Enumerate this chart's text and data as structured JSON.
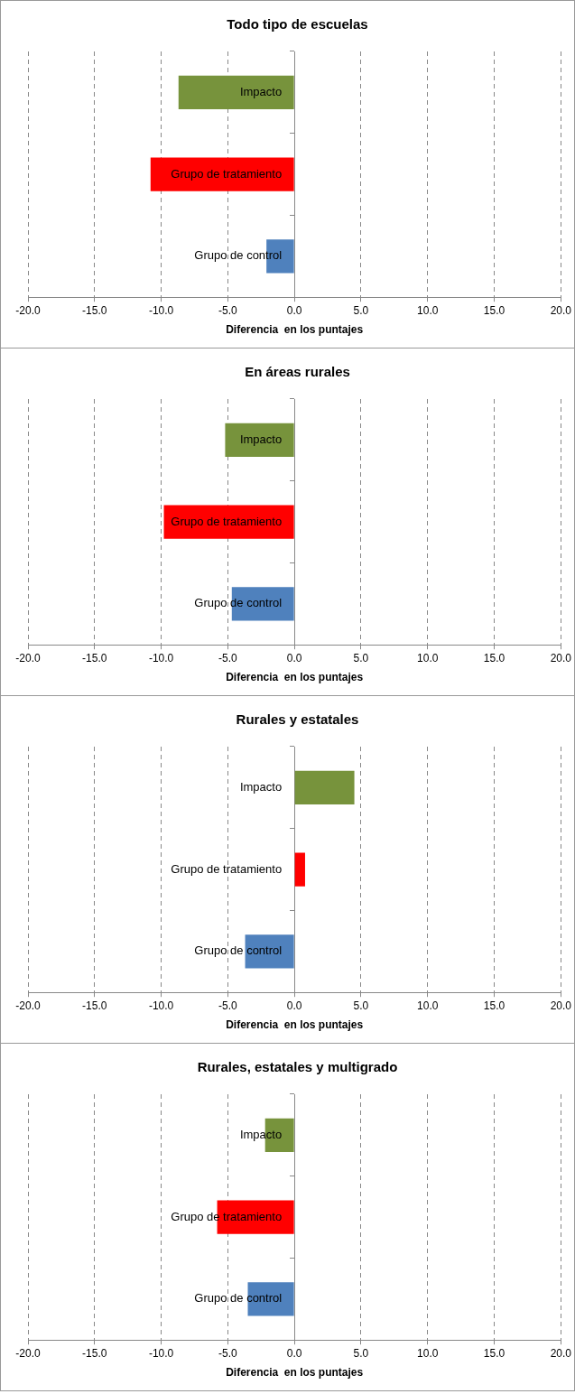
{
  "chart_data": [
    {
      "type": "bar",
      "orientation": "horizontal",
      "title": "Todo tipo de escuelas",
      "xlabel": "Diferencia  en los puntajes",
      "categories": [
        "Impacto",
        "Grupo de tratamiento",
        "Grupo de control"
      ],
      "values": [
        -8.7,
        -10.8,
        -2.1
      ],
      "colors": [
        "#77933c",
        "#ff0000",
        "#4f81bd"
      ],
      "xlim": [
        -20,
        20
      ],
      "xticks": [
        {
          "value": -20,
          "label": "-20.0"
        },
        {
          "value": -15,
          "label": "-15.0"
        },
        {
          "value": -10,
          "label": "-10.0"
        },
        {
          "value": -5,
          "label": "-5.0"
        },
        {
          "value": 0,
          "label": "0.0"
        },
        {
          "value": 5,
          "label": "5.0"
        },
        {
          "value": 10,
          "label": "10.0"
        },
        {
          "value": 15,
          "label": "15.0"
        },
        {
          "value": 20,
          "label": "20.0"
        }
      ],
      "grid": "x"
    },
    {
      "type": "bar",
      "orientation": "horizontal",
      "title": "En áreas rurales",
      "xlabel": "Diferencia  en los puntajes",
      "categories": [
        "Impacto",
        "Grupo de tratamiento",
        "Grupo de control"
      ],
      "values": [
        -5.2,
        -9.8,
        -4.7
      ],
      "colors": [
        "#77933c",
        "#ff0000",
        "#4f81bd"
      ],
      "xlim": [
        -20,
        20
      ],
      "xticks": [
        {
          "value": -20,
          "label": "-20.0"
        },
        {
          "value": -15,
          "label": "-15.0"
        },
        {
          "value": -10,
          "label": "-10.0"
        },
        {
          "value": -5,
          "label": "-5.0"
        },
        {
          "value": 0,
          "label": "0.0"
        },
        {
          "value": 5,
          "label": "5.0"
        },
        {
          "value": 10,
          "label": "10.0"
        },
        {
          "value": 15,
          "label": "15.0"
        },
        {
          "value": 20,
          "label": "20.0"
        }
      ],
      "grid": "x"
    },
    {
      "type": "bar",
      "orientation": "horizontal",
      "title": "Rurales y estatales",
      "xlabel": "Diferencia  en los puntajes",
      "categories": [
        "Impacto",
        "Grupo de tratamiento",
        "Grupo de control"
      ],
      "values": [
        4.5,
        0.8,
        -3.7
      ],
      "colors": [
        "#77933c",
        "#ff0000",
        "#4f81bd"
      ],
      "xlim": [
        -20,
        20
      ],
      "xticks": [
        {
          "value": -20,
          "label": "-20.0"
        },
        {
          "value": -15,
          "label": "-15.0"
        },
        {
          "value": -10,
          "label": "-10.0"
        },
        {
          "value": -5,
          "label": "-5.0"
        },
        {
          "value": 0,
          "label": "0.0"
        },
        {
          "value": 5,
          "label": "5.0"
        },
        {
          "value": 10,
          "label": "10.0"
        },
        {
          "value": 15,
          "label": "15.0"
        },
        {
          "value": 20,
          "label": "20.0"
        }
      ],
      "grid": "x"
    },
    {
      "type": "bar",
      "orientation": "horizontal",
      "title": "Rurales, estatales y multigrado",
      "xlabel": "Diferencia  en los puntajes",
      "categories": [
        "Impacto",
        "Grupo de tratamiento",
        "Grupo de control"
      ],
      "values": [
        -2.2,
        -5.8,
        -3.5
      ],
      "colors": [
        "#77933c",
        "#ff0000",
        "#4f81bd"
      ],
      "xlim": [
        -20,
        20
      ],
      "xticks": [
        {
          "value": -20,
          "label": "-20.0"
        },
        {
          "value": -15,
          "label": "-15.0"
        },
        {
          "value": -10,
          "label": "-10.0"
        },
        {
          "value": -5,
          "label": "-5.0"
        },
        {
          "value": 0,
          "label": "0.0"
        },
        {
          "value": 5,
          "label": "5.0"
        },
        {
          "value": 10,
          "label": "10.0"
        },
        {
          "value": 15,
          "label": "15.0"
        },
        {
          "value": 20,
          "label": "20.0"
        }
      ],
      "grid": "x"
    }
  ]
}
